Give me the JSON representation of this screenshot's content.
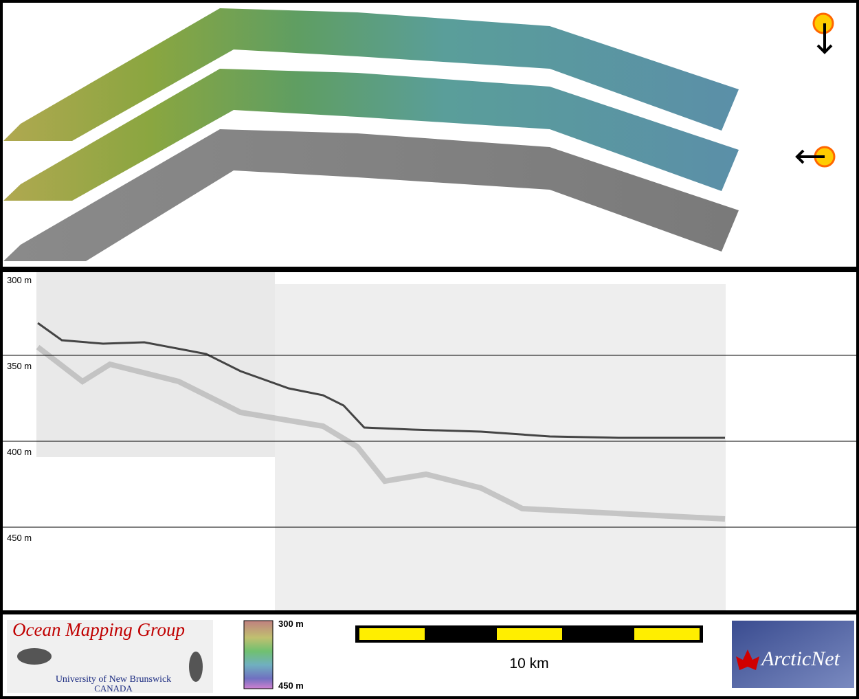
{
  "profile": {
    "depth_labels": [
      "300 m",
      "350 m",
      "400 m",
      "450 m"
    ]
  },
  "legend": {
    "logo_title": "Ocean Mapping Group",
    "logo_university": "University of New Brunswick",
    "logo_country": "CANADA",
    "colorbar_top": "300 m",
    "colorbar_bottom": "450 m",
    "scale_label": "10 km",
    "partner_logo": "ArcticNet"
  }
}
